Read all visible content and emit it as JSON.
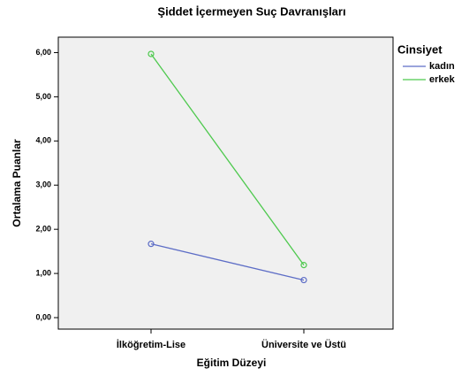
{
  "chart_data": {
    "type": "line",
    "title": "Şiddet İçermeyen Suç Davranışları",
    "x_label": "Eğitim Düzeyi",
    "y_label": "Ortalama Puanlar",
    "legend_title": "Cinsiyet",
    "legend_position": "right",
    "categories": [
      "İlköğretim-Lise",
      "Üniversite ve Üstü"
    ],
    "series": [
      {
        "name": "kadın",
        "color": "#5d6dc6",
        "values": [
          1.67,
          0.85
        ]
      },
      {
        "name": "erkek",
        "color": "#4ec94e",
        "values": [
          5.97,
          1.19
        ]
      }
    ],
    "ylim": [
      -0.26,
      6.35
    ],
    "yticks": [
      {
        "value": 0,
        "label": "0,00"
      },
      {
        "value": 1,
        "label": "1,00"
      },
      {
        "value": 2,
        "label": "2,00"
      },
      {
        "value": 3,
        "label": "3,00"
      },
      {
        "value": 4,
        "label": "4,00"
      },
      {
        "value": 5,
        "label": "5,00"
      },
      {
        "value": 6,
        "label": "6,00"
      }
    ]
  }
}
